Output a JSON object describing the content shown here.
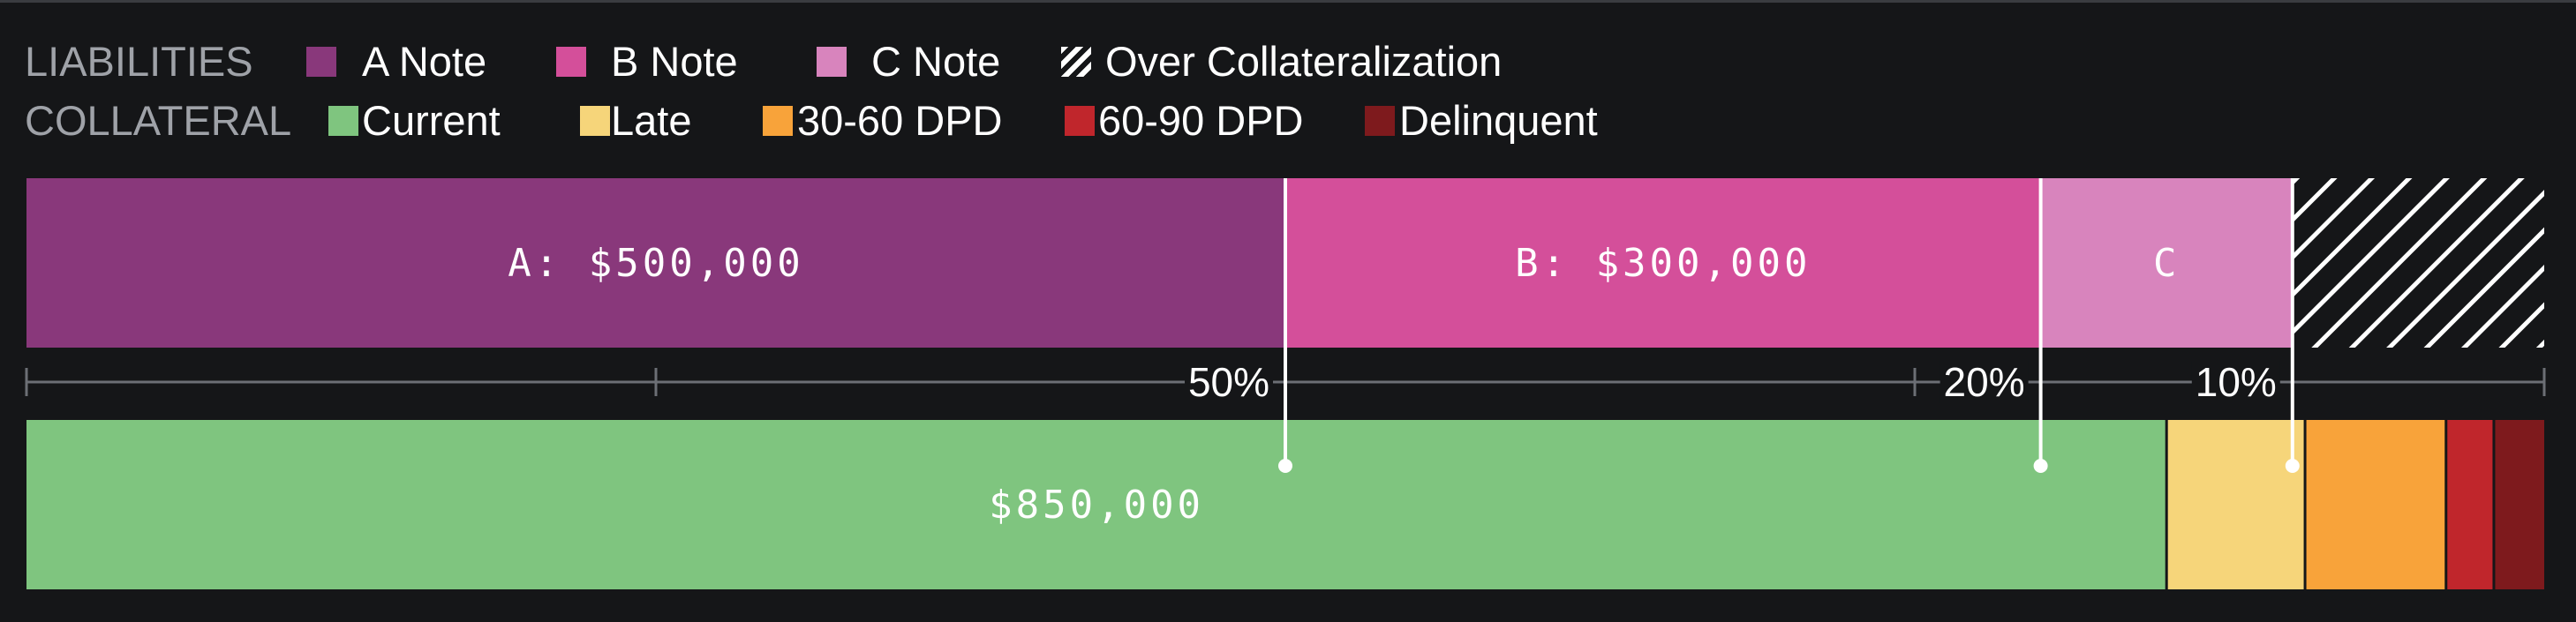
{
  "legend": {
    "liabilities_label": "LIABILITIES",
    "collateral_label": "COLLATERAL",
    "liabilities": [
      {
        "label": "A Note",
        "color": "#89387b"
      },
      {
        "label": "B Note",
        "color": "#d44f9a"
      },
      {
        "label": "C Note",
        "color": "#d884bd"
      },
      {
        "label": "Over Collateralization",
        "pattern": "hatch",
        "color": "#ffffff"
      }
    ],
    "collateral": [
      {
        "label": "Current",
        "color": "#7fc57f"
      },
      {
        "label": "Late",
        "color": "#f6d57a"
      },
      {
        "label": "30-60 DPD",
        "color": "#f8a33a"
      },
      {
        "label": "60-90 DPD",
        "color": "#c0262c"
      },
      {
        "label": "Delinquent",
        "color": "#7e1a1d"
      }
    ]
  },
  "chart_data": {
    "type": "bar",
    "orientation": "horizontal-stacked",
    "total": 1000000,
    "liabilities": [
      {
        "name": "A Note",
        "label": "A: $500,000",
        "value": 500000,
        "color": "#89387b"
      },
      {
        "name": "B Note",
        "label": "B: $300,000",
        "value": 300000,
        "color": "#d44f9a"
      },
      {
        "name": "C Note",
        "label": "C",
        "value": 100000,
        "color": "#d884bd"
      },
      {
        "name": "Over Collateralization",
        "label": "",
        "value": 100000,
        "color": "#ffffff",
        "pattern": "hatch"
      }
    ],
    "collateral": [
      {
        "name": "Current",
        "label": "$850,000",
        "value": 850000,
        "color": "#7fc57f"
      },
      {
        "name": "Late",
        "label": "",
        "value": 55000,
        "color": "#f6d57a"
      },
      {
        "name": "30-60 DPD",
        "label": "",
        "value": 56000,
        "color": "#f8a33a"
      },
      {
        "name": "60-90 DPD",
        "label": "",
        "value": 19000,
        "color": "#c0262c"
      },
      {
        "name": "Delinquent",
        "label": "",
        "value": 20000,
        "color": "#7e1a1d"
      }
    ],
    "axis": {
      "ticks": [
        0,
        250000,
        750000,
        1000000
      ],
      "percent_labels": [
        {
          "text": "50%",
          "value": 500000
        },
        {
          "text": "20%",
          "value": 800000
        },
        {
          "text": "10%",
          "value": 900000
        }
      ]
    },
    "markers": [
      500000,
      800000,
      900000
    ],
    "colors": {
      "axis": "#6c6f75",
      "marker": "#ffffff",
      "background": "#151618"
    }
  }
}
